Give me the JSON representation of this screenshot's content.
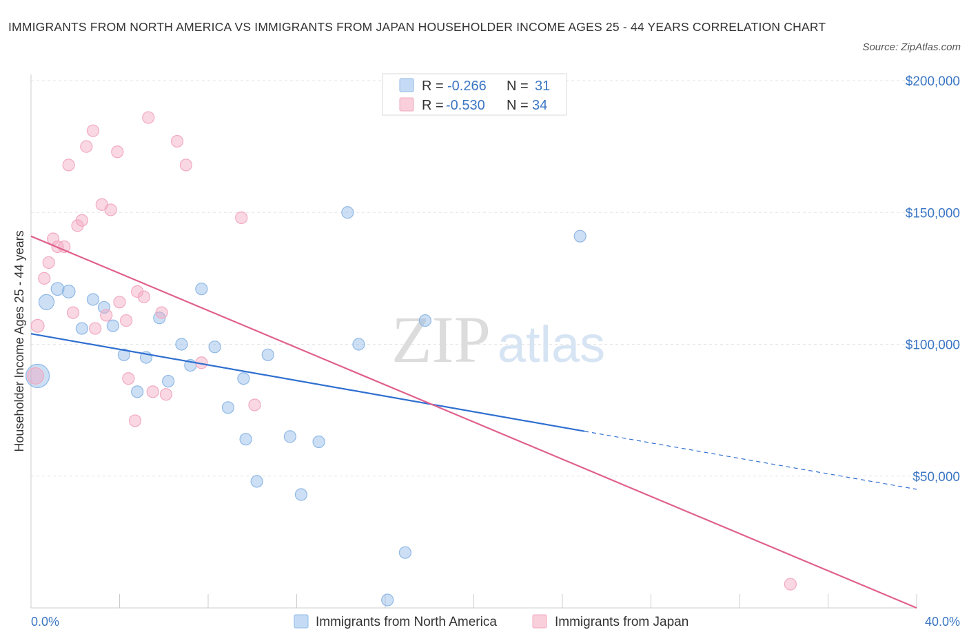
{
  "title": "IMMIGRANTS FROM NORTH AMERICA VS IMMIGRANTS FROM JAPAN HOUSEHOLDER INCOME AGES 25 - 44 YEARS CORRELATION CHART",
  "source": "Source: ZipAtlas.com",
  "watermark": {
    "zip": "ZIP",
    "atlas": "atlas"
  },
  "chart_data": {
    "type": "scatter",
    "ylabel": "Householder Income Ages 25 - 44 years",
    "xlim": [
      0,
      40
    ],
    "ylim": [
      0,
      200000
    ],
    "x_tick_labels": {
      "left": "0.0%",
      "right": "40.0%"
    },
    "y_ticks": [
      {
        "value": 200000,
        "label": "$200,000"
      },
      {
        "value": 150000,
        "label": "$150,000"
      },
      {
        "value": 100000,
        "label": "$100,000"
      },
      {
        "value": 50000,
        "label": "$50,000"
      }
    ],
    "grid": true,
    "legend_position": "top-center",
    "series": [
      {
        "name": "Immigrants from North America",
        "color": "#8fb8e6",
        "line_color": "#2f6fd0",
        "R": "-0.266",
        "N": "31",
        "trend": {
          "x0": 0,
          "y0": 104000,
          "x1": 25,
          "y1": 67000,
          "dash_x1": 40,
          "dash_y1": 45000
        },
        "points": [
          {
            "x": 0.3,
            "y": 88000,
            "s": 2.0
          },
          {
            "x": 0.7,
            "y": 116000,
            "s": 1.3
          },
          {
            "x": 1.2,
            "y": 121000,
            "s": 1.1
          },
          {
            "x": 1.7,
            "y": 120000,
            "s": 1.1
          },
          {
            "x": 2.3,
            "y": 106000,
            "s": 1.0
          },
          {
            "x": 2.8,
            "y": 117000,
            "s": 1.0
          },
          {
            "x": 3.3,
            "y": 114000,
            "s": 1.0
          },
          {
            "x": 3.7,
            "y": 107000,
            "s": 1.0
          },
          {
            "x": 4.2,
            "y": 96000,
            "s": 1.0
          },
          {
            "x": 4.8,
            "y": 82000,
            "s": 1.0
          },
          {
            "x": 5.2,
            "y": 95000,
            "s": 1.0
          },
          {
            "x": 5.8,
            "y": 110000,
            "s": 1.0
          },
          {
            "x": 6.2,
            "y": 86000,
            "s": 1.0
          },
          {
            "x": 6.8,
            "y": 100000,
            "s": 1.0
          },
          {
            "x": 7.2,
            "y": 92000,
            "s": 1.0
          },
          {
            "x": 7.7,
            "y": 121000,
            "s": 1.0
          },
          {
            "x": 8.3,
            "y": 99000,
            "s": 1.0
          },
          {
            "x": 8.9,
            "y": 76000,
            "s": 1.0
          },
          {
            "x": 9.6,
            "y": 87000,
            "s": 1.0
          },
          {
            "x": 9.7,
            "y": 64000,
            "s": 1.0
          },
          {
            "x": 10.2,
            "y": 48000,
            "s": 1.0
          },
          {
            "x": 10.7,
            "y": 96000,
            "s": 1.0
          },
          {
            "x": 11.7,
            "y": 65000,
            "s": 1.0
          },
          {
            "x": 12.2,
            "y": 43000,
            "s": 1.0
          },
          {
            "x": 13.0,
            "y": 63000,
            "s": 1.0
          },
          {
            "x": 14.3,
            "y": 150000,
            "s": 1.0
          },
          {
            "x": 14.8,
            "y": 100000,
            "s": 1.0
          },
          {
            "x": 16.1,
            "y": 3000,
            "s": 1.0
          },
          {
            "x": 16.9,
            "y": 21000,
            "s": 1.0
          },
          {
            "x": 17.8,
            "y": 109000,
            "s": 1.0
          },
          {
            "x": 24.8,
            "y": 141000,
            "s": 1.0
          }
        ]
      },
      {
        "name": "Immigrants from Japan",
        "color": "#f2a9c0",
        "line_color": "#e0608d",
        "R": "-0.530",
        "N": "34",
        "trend": {
          "x0": 0,
          "y0": 141000,
          "x1": 40,
          "y1": 0
        },
        "points": [
          {
            "x": 0.2,
            "y": 88000,
            "s": 1.4
          },
          {
            "x": 0.3,
            "y": 107000,
            "s": 1.1
          },
          {
            "x": 0.6,
            "y": 125000,
            "s": 1.0
          },
          {
            "x": 0.8,
            "y": 131000,
            "s": 1.0
          },
          {
            "x": 1.0,
            "y": 140000,
            "s": 1.0
          },
          {
            "x": 1.2,
            "y": 137000,
            "s": 1.0
          },
          {
            "x": 1.5,
            "y": 137000,
            "s": 1.0
          },
          {
            "x": 1.7,
            "y": 168000,
            "s": 1.0
          },
          {
            "x": 1.9,
            "y": 112000,
            "s": 1.0
          },
          {
            "x": 2.1,
            "y": 145000,
            "s": 1.0
          },
          {
            "x": 2.3,
            "y": 147000,
            "s": 1.0
          },
          {
            "x": 2.5,
            "y": 175000,
            "s": 1.0
          },
          {
            "x": 2.8,
            "y": 181000,
            "s": 1.0
          },
          {
            "x": 2.9,
            "y": 106000,
            "s": 1.0
          },
          {
            "x": 3.2,
            "y": 153000,
            "s": 1.0
          },
          {
            "x": 3.4,
            "y": 111000,
            "s": 1.0
          },
          {
            "x": 3.6,
            "y": 151000,
            "s": 1.0
          },
          {
            "x": 3.9,
            "y": 173000,
            "s": 1.0
          },
          {
            "x": 4.0,
            "y": 116000,
            "s": 1.0
          },
          {
            "x": 4.3,
            "y": 109000,
            "s": 1.0
          },
          {
            "x": 4.4,
            "y": 87000,
            "s": 1.0
          },
          {
            "x": 4.7,
            "y": 71000,
            "s": 1.0
          },
          {
            "x": 4.8,
            "y": 120000,
            "s": 1.0
          },
          {
            "x": 5.1,
            "y": 118000,
            "s": 1.0
          },
          {
            "x": 5.3,
            "y": 186000,
            "s": 1.0
          },
          {
            "x": 5.5,
            "y": 82000,
            "s": 1.0
          },
          {
            "x": 5.9,
            "y": 112000,
            "s": 1.0
          },
          {
            "x": 6.1,
            "y": 81000,
            "s": 1.0
          },
          {
            "x": 6.6,
            "y": 177000,
            "s": 1.0
          },
          {
            "x": 7.0,
            "y": 168000,
            "s": 1.0
          },
          {
            "x": 7.7,
            "y": 93000,
            "s": 1.0
          },
          {
            "x": 9.5,
            "y": 148000,
            "s": 1.0
          },
          {
            "x": 10.1,
            "y": 77000,
            "s": 1.0
          },
          {
            "x": 34.3,
            "y": 9000,
            "s": 1.0
          }
        ]
      }
    ]
  }
}
